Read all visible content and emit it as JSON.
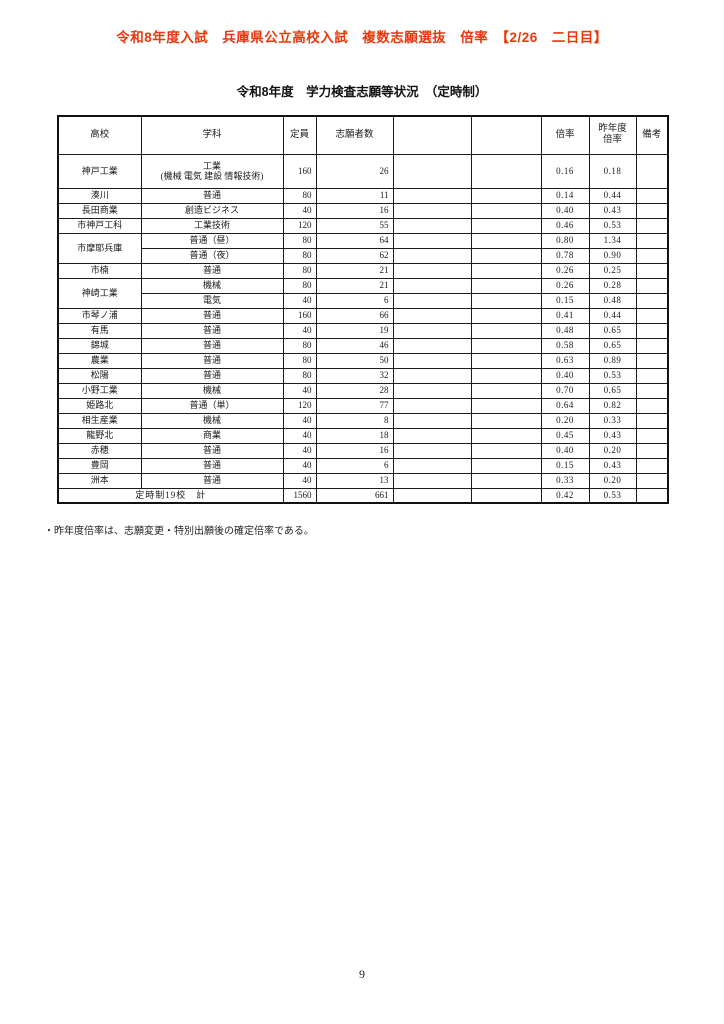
{
  "page": {
    "title": "令和8年度入試　兵庫県公立高校入試　複数志願選抜　倍率　【2/26　二日目】",
    "title_color": "#e8380d",
    "subtitle": "令和8年度　学力検査志願等状況　（定時制）",
    "footnote": "・昨年度倍率は、志願変更・特別出願後の確定倍率である。",
    "page_number": "9"
  },
  "table": {
    "headers": [
      "高校",
      "学科",
      "定員",
      "志願者数",
      "",
      "",
      "倍率",
      "昨年度\n倍率",
      "備考"
    ],
    "rows": [
      {
        "school": "神戸工業",
        "tall": true,
        "dept": "工業\n(機械 電気 建設 情報技術)",
        "capacity": "160",
        "applicants": "26",
        "ratio": "0.16",
        "last_ratio": "0.18",
        "remarks": ""
      },
      {
        "school": "湊川",
        "dept": "普通",
        "capacity": "80",
        "applicants": "11",
        "ratio": "0.14",
        "last_ratio": "0.44",
        "remarks": ""
      },
      {
        "school": "長田商業",
        "dept": "創造ビジネス",
        "capacity": "40",
        "applicants": "16",
        "ratio": "0.40",
        "last_ratio": "0.43",
        "remarks": ""
      },
      {
        "school": "市神戸工科",
        "dept": "工業技術",
        "capacity": "120",
        "applicants": "55",
        "ratio": "0.46",
        "last_ratio": "0.53",
        "remarks": ""
      },
      {
        "school": "市摩耶兵庫",
        "rowspan": 2,
        "dept": "普通（昼）",
        "capacity": "80",
        "applicants": "64",
        "ratio": "0.80",
        "last_ratio": "1.34",
        "remarks": ""
      },
      {
        "school": null,
        "dept": "普通（夜）",
        "capacity": "80",
        "applicants": "62",
        "ratio": "0.78",
        "last_ratio": "0.90",
        "remarks": ""
      },
      {
        "school": "市楠",
        "dept": "普通",
        "capacity": "80",
        "applicants": "21",
        "ratio": "0.26",
        "last_ratio": "0.25",
        "remarks": ""
      },
      {
        "school": "神崎工業",
        "rowspan": 2,
        "dept": "機械",
        "capacity": "80",
        "applicants": "21",
        "ratio": "0.26",
        "last_ratio": "0.28",
        "remarks": ""
      },
      {
        "school": null,
        "dept": "電気",
        "capacity": "40",
        "applicants": "6",
        "ratio": "0.15",
        "last_ratio": "0.48",
        "remarks": ""
      },
      {
        "school": "市琴ノ浦",
        "dept": "普通",
        "capacity": "160",
        "applicants": "66",
        "ratio": "0.41",
        "last_ratio": "0.44",
        "remarks": ""
      },
      {
        "school": "有馬",
        "dept": "普通",
        "capacity": "40",
        "applicants": "19",
        "ratio": "0.48",
        "last_ratio": "0.65",
        "remarks": ""
      },
      {
        "school": "錦城",
        "dept": "普通",
        "capacity": "80",
        "applicants": "46",
        "ratio": "0.58",
        "last_ratio": "0.65",
        "remarks": ""
      },
      {
        "school": "農業",
        "dept": "普通",
        "capacity": "80",
        "applicants": "50",
        "ratio": "0.63",
        "last_ratio": "0.89",
        "remarks": ""
      },
      {
        "school": "松陽",
        "dept": "普通",
        "capacity": "80",
        "applicants": "32",
        "ratio": "0.40",
        "last_ratio": "0.53",
        "remarks": ""
      },
      {
        "school": "小野工業",
        "dept": "機械",
        "capacity": "40",
        "applicants": "28",
        "ratio": "0.70",
        "last_ratio": "0.65",
        "remarks": ""
      },
      {
        "school": "姫路北",
        "dept": "普通（単）",
        "capacity": "120",
        "applicants": "77",
        "ratio": "0.64",
        "last_ratio": "0.82",
        "remarks": ""
      },
      {
        "school": "相生産業",
        "dept": "機械",
        "capacity": "40",
        "applicants": "8",
        "ratio": "0.20",
        "last_ratio": "0.33",
        "remarks": ""
      },
      {
        "school": "龍野北",
        "dept": "商業",
        "capacity": "40",
        "applicants": "18",
        "ratio": "0.45",
        "last_ratio": "0.43",
        "remarks": ""
      },
      {
        "school": "赤穂",
        "dept": "普通",
        "capacity": "40",
        "applicants": "16",
        "ratio": "0.40",
        "last_ratio": "0.20",
        "remarks": ""
      },
      {
        "school": "豊岡",
        "dept": "普通",
        "capacity": "40",
        "applicants": "6",
        "ratio": "0.15",
        "last_ratio": "0.43",
        "remarks": ""
      },
      {
        "school": "洲本",
        "dept": "普通",
        "capacity": "40",
        "applicants": "13",
        "ratio": "0.33",
        "last_ratio": "0.20",
        "remarks": ""
      }
    ],
    "total_row": {
      "label": "定時制19校　計",
      "capacity": "1560",
      "applicants": "661",
      "ratio": "0.42",
      "last_ratio": "0.53",
      "remarks": ""
    }
  }
}
